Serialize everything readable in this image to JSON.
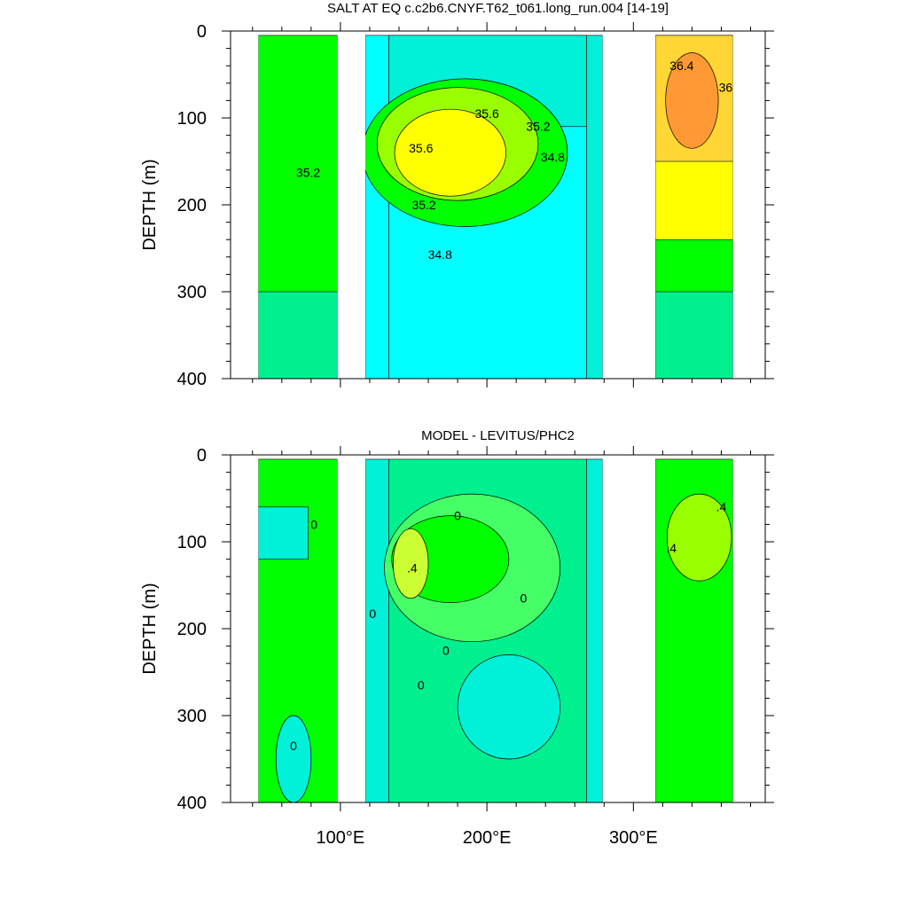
{
  "colors": {
    "background": "#ffffff",
    "land": "#ffffff",
    "contour_line": "#000000",
    "palette": {
      "cyan": "#00ffff",
      "aqua": "#00f0d8",
      "seagreen": "#00f090",
      "green": "#00ff00",
      "lightgreen": "#44ff66",
      "chartreuse": "#99ff00",
      "yellowgreen": "#ccff33",
      "yellow": "#ffff00",
      "gold": "#ffd633",
      "orange": "#ff9933",
      "blue": "#0000cc",
      "magenta": "#cc00cc"
    }
  },
  "x_axis": {
    "range": [
      25,
      390
    ],
    "ticks": [
      100,
      200,
      300
    ],
    "tick_labels": [
      "100°E",
      "200°E",
      "300°E"
    ],
    "minor_step": 20
  },
  "chart_data": [
    {
      "type": "heatmap",
      "title": "SALT AT EQ c.c2b6.CNYF.T62_t061.long_run.004 [14-19]",
      "xlabel": "",
      "ylabel": "DEPTH (m)",
      "xlim": [
        25,
        390
      ],
      "ylim": [
        400,
        0
      ],
      "y_ticks": [
        0,
        100,
        200,
        300,
        400
      ],
      "y_tick_labels": [
        "0",
        "100",
        "200",
        "300",
        "400"
      ],
      "land_ranges_lon": [
        [
          25,
          44
        ],
        [
          98,
          117
        ],
        [
          279,
          315
        ],
        [
          368,
          390
        ]
      ],
      "regions": [
        {
          "lon": [
            44,
            98
          ],
          "depth": [
            5,
            400
          ],
          "color": "green"
        },
        {
          "lon": [
            44,
            98
          ],
          "depth": [
            300,
            400
          ],
          "color": "seagreen"
        },
        {
          "lon": [
            117,
            133
          ],
          "depth": [
            5,
            400
          ],
          "color": "cyan"
        },
        {
          "lon": [
            133,
            268
          ],
          "depth": [
            5,
            400
          ],
          "color": "cyan"
        },
        {
          "lon": [
            133,
            268
          ],
          "depth": [
            5,
            110
          ],
          "color": "aqua"
        },
        {
          "lon": [
            268,
            279
          ],
          "depth": [
            5,
            400
          ],
          "color": "aqua"
        },
        {
          "lon": [
            315,
            368
          ],
          "depth": [
            5,
            400
          ],
          "color": "seagreen"
        },
        {
          "lon": [
            315,
            368
          ],
          "depth": [
            5,
            300
          ],
          "color": "green"
        },
        {
          "lon": [
            315,
            368
          ],
          "depth": [
            5,
            240
          ],
          "color": "yellow"
        },
        {
          "lon": [
            315,
            368
          ],
          "depth": [
            5,
            150
          ],
          "color": "gold"
        }
      ],
      "blobs": [
        {
          "lon": 185,
          "depth": 140,
          "rlon": 70,
          "rdepth": 85,
          "color": "green"
        },
        {
          "lon": 180,
          "depth": 130,
          "rlon": 55,
          "rdepth": 65,
          "color": "chartreuse"
        },
        {
          "lon": 175,
          "depth": 140,
          "rlon": 38,
          "rdepth": 50,
          "color": "yellow"
        },
        {
          "lon": 340,
          "depth": 80,
          "rlon": 18,
          "rdepth": 55,
          "color": "orange"
        }
      ],
      "contour_labels": [
        "35.2",
        "35.6",
        "35.6",
        "35.2",
        "35.2",
        "34.8",
        "34.8",
        "36.4",
        "36"
      ],
      "contour_label_positions": [
        {
          "lon": 78,
          "depth": 168
        },
        {
          "lon": 155,
          "depth": 140
        },
        {
          "lon": 200,
          "depth": 100
        },
        {
          "lon": 235,
          "depth": 115
        },
        {
          "lon": 157,
          "depth": 205
        },
        {
          "lon": 245,
          "depth": 150
        },
        {
          "lon": 168,
          "depth": 262
        },
        {
          "lon": 333,
          "depth": 45
        },
        {
          "lon": 363,
          "depth": 70
        }
      ]
    },
    {
      "type": "heatmap",
      "title": "MODEL - LEVITUS/PHC2",
      "xlabel": "",
      "ylabel": "DEPTH (m)",
      "xlim": [
        25,
        390
      ],
      "ylim": [
        400,
        0
      ],
      "y_ticks": [
        0,
        100,
        200,
        300,
        400
      ],
      "y_tick_labels": [
        "0",
        "100",
        "200",
        "300",
        "400"
      ],
      "land_ranges_lon": [
        [
          25,
          44
        ],
        [
          98,
          117
        ],
        [
          279,
          315
        ],
        [
          368,
          390
        ]
      ],
      "regions": [
        {
          "lon": [
            44,
            98
          ],
          "depth": [
            5,
            400
          ],
          "color": "green"
        },
        {
          "lon": [
            44,
            78
          ],
          "depth": [
            60,
            120
          ],
          "color": "aqua"
        },
        {
          "lon": [
            117,
            133
          ],
          "depth": [
            5,
            400
          ],
          "color": "aqua"
        },
        {
          "lon": [
            133,
            268
          ],
          "depth": [
            5,
            400
          ],
          "color": "seagreen"
        },
        {
          "lon": [
            268,
            279
          ],
          "depth": [
            5,
            400
          ],
          "color": "aqua"
        },
        {
          "lon": [
            315,
            368
          ],
          "depth": [
            5,
            400
          ],
          "color": "green"
        }
      ],
      "blobs": [
        {
          "lon": 190,
          "depth": 130,
          "rlon": 60,
          "rdepth": 85,
          "color": "lightgreen"
        },
        {
          "lon": 175,
          "depth": 120,
          "rlon": 40,
          "rdepth": 50,
          "color": "green"
        },
        {
          "lon": 148,
          "depth": 125,
          "rlon": 12,
          "rdepth": 40,
          "color": "yellowgreen"
        },
        {
          "lon": 215,
          "depth": 290,
          "rlon": 35,
          "rdepth": 60,
          "color": "aqua"
        },
        {
          "lon": 345,
          "depth": 95,
          "rlon": 22,
          "rdepth": 50,
          "color": "chartreuse"
        },
        {
          "lon": 68,
          "depth": 350,
          "rlon": 12,
          "rdepth": 50,
          "color": "aqua"
        }
      ],
      "contour_labels": [
        "0",
        "0",
        ".4",
        "0",
        "0",
        "0",
        "0",
        ".4",
        ".4",
        "0"
      ],
      "contour_label_positions": [
        {
          "lon": 82,
          "depth": 85
        },
        {
          "lon": 122,
          "depth": 188
        },
        {
          "lon": 149,
          "depth": 135
        },
        {
          "lon": 172,
          "depth": 230
        },
        {
          "lon": 155,
          "depth": 270
        },
        {
          "lon": 225,
          "depth": 170
        },
        {
          "lon": 68,
          "depth": 340
        },
        {
          "lon": 360,
          "depth": 65
        },
        {
          "lon": 326,
          "depth": 112
        },
        {
          "lon": 180,
          "depth": 75
        }
      ]
    }
  ]
}
